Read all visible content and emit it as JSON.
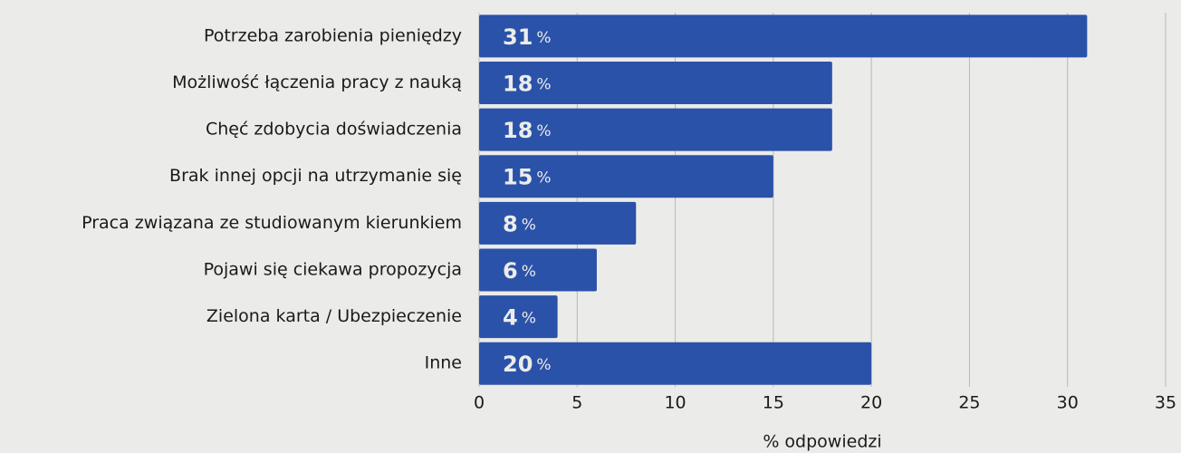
{
  "chart_data": {
    "type": "barh",
    "categories": [
      "Potrzeba zarobienia pieniędzy",
      "Możliwość łączenia pracy z nauką",
      "Chęć zdobycia doświadczenia",
      "Brak innej opcji na utrzymanie się",
      "Praca związana ze studiowanym kierunkiem",
      "Pojawi się ciekawa propozycja",
      "Zielona karta / Ubezpieczenie",
      "Inne"
    ],
    "values": [
      31,
      18,
      18,
      15,
      8,
      6,
      4,
      20
    ],
    "value_suffix": "%",
    "color": "#2b52a9",
    "xlabel": "% odpowiedzi",
    "xlim": [
      0,
      35
    ],
    "xticks": [
      0,
      5,
      10,
      15,
      20,
      25,
      30,
      35
    ],
    "grid": true
  }
}
